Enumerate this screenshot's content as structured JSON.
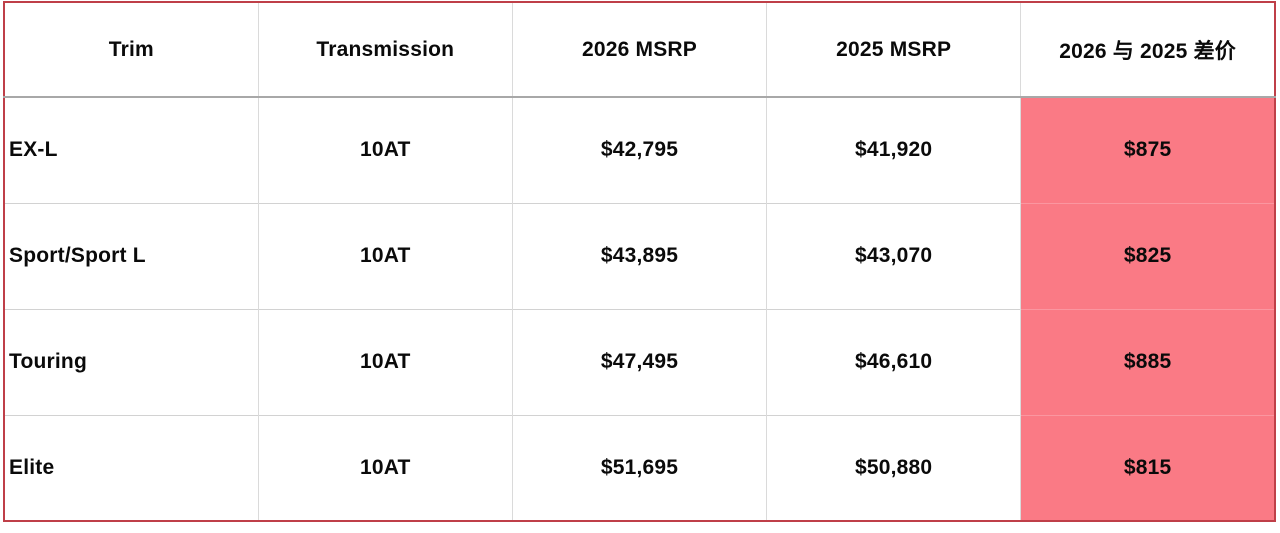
{
  "colors": {
    "table_border": "#bf3f48",
    "highlight_column_bg": "#fa7a85",
    "header_divider": "#a8a8a8",
    "grid_line": "#d2d2d2",
    "text": "#0a0a0a"
  },
  "chart_data": {
    "type": "table",
    "title": "",
    "columns": [
      "Trim",
      "Transmission",
      "2026 MSRP",
      "2025 MSRP",
      "2026 与 2025 差价"
    ],
    "highlight_column": "2026 与 2025 差价",
    "rows": [
      {
        "trim": "EX-L",
        "transmission": "10AT",
        "msrp_2026": "$42,795",
        "msrp_2025": "$41,920",
        "diff": "$875"
      },
      {
        "trim": "Sport/Sport L",
        "transmission": "10AT",
        "msrp_2026": "$43,895",
        "msrp_2025": "$43,070",
        "diff": "$825"
      },
      {
        "trim": "Touring",
        "transmission": "10AT",
        "msrp_2026": "$47,495",
        "msrp_2025": "$46,610",
        "diff": "$885"
      },
      {
        "trim": "Elite",
        "transmission": "10AT",
        "msrp_2026": "$51,695",
        "msrp_2025": "$50,880",
        "diff": "$815"
      }
    ],
    "diff_values_numeric": [
      875,
      825,
      885,
      815
    ],
    "msrp_2026_numeric": [
      42795,
      43895,
      47495,
      51695
    ],
    "msrp_2025_numeric": [
      41920,
      43070,
      46610,
      50880
    ]
  }
}
